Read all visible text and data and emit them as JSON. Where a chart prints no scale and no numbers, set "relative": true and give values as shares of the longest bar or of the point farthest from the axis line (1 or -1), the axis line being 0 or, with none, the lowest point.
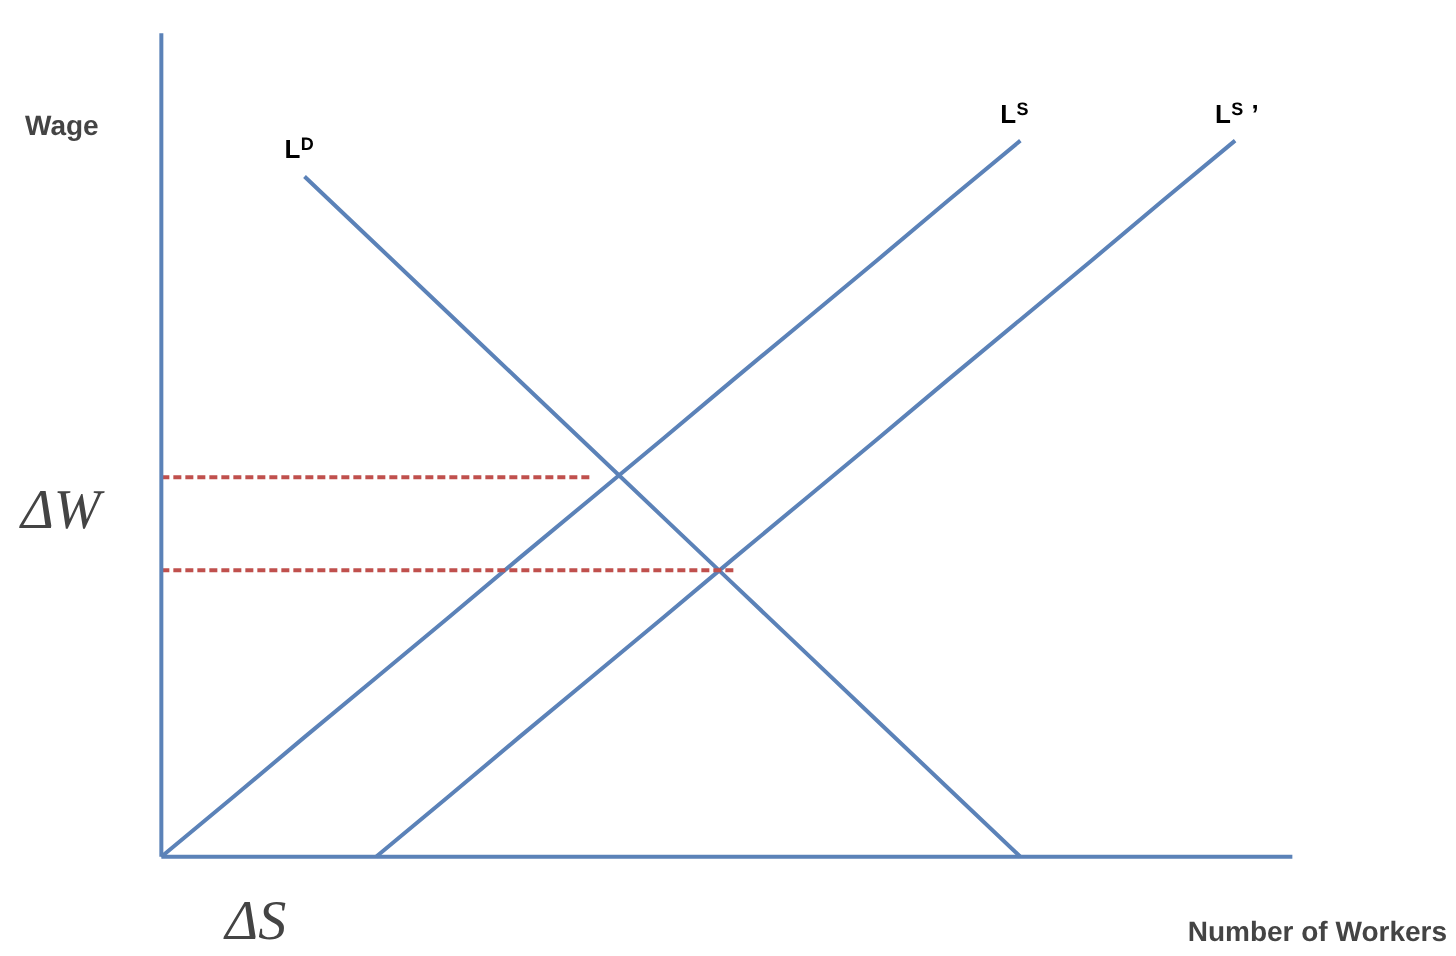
{
  "chart_data": {
    "type": "line",
    "relative": true,
    "xlabel": "Number of Workers",
    "ylabel": "Wage",
    "annotations": [
      "ΔW",
      "ΔS"
    ],
    "grid": false,
    "marker": "none",
    "categories": [
      null,
      null,
      null,
      null,
      null,
      null,
      null,
      null,
      null,
      null,
      null,
      null,
      null,
      null,
      null,
      null
    ],
    "series": [
      {
        "name": "L$^{D}$",
        "color": "#5b82b8",
        "values": [
          null,
          null,
          0.95,
          0.855,
          0.76,
          0.665,
          0.57,
          0.475,
          0.38,
          0.285,
          0.19,
          0.095,
          0,
          null,
          null,
          null
        ]
      },
      {
        "name": "L$^{S}$",
        "color": "#5b82b8",
        "values": [
          0,
          0.083,
          0.167,
          0.25,
          0.333,
          0.417,
          0.5,
          0.583,
          0.667,
          0.75,
          0.833,
          0.917,
          1,
          null,
          null,
          null
        ]
      },
      {
        "name": "L$^{S}$ ’",
        "color": "#5b82b8",
        "values": [
          null,
          null,
          null,
          0,
          0.083,
          0.167,
          0.25,
          0.333,
          0.417,
          0.5,
          0.583,
          0.667,
          0.75,
          0.833,
          0.917,
          1
        ]
      },
      {
        "color": "#c0504d",
        "values": [
          0.53,
          0.53,
          0.53,
          0.53,
          0.53,
          0.53,
          0.53,
          null,
          null,
          null,
          null,
          null,
          null,
          null,
          null,
          null
        ],
        "line_style": "dashed"
      },
      {
        "color": "#c0504d",
        "values": [
          0.4,
          0.4,
          0.4,
          0.4,
          0.4,
          0.4,
          0.4,
          0.4,
          0.4,
          null,
          null,
          null,
          null,
          null,
          null,
          null
        ],
        "line_style": "dashed"
      }
    ]
  }
}
